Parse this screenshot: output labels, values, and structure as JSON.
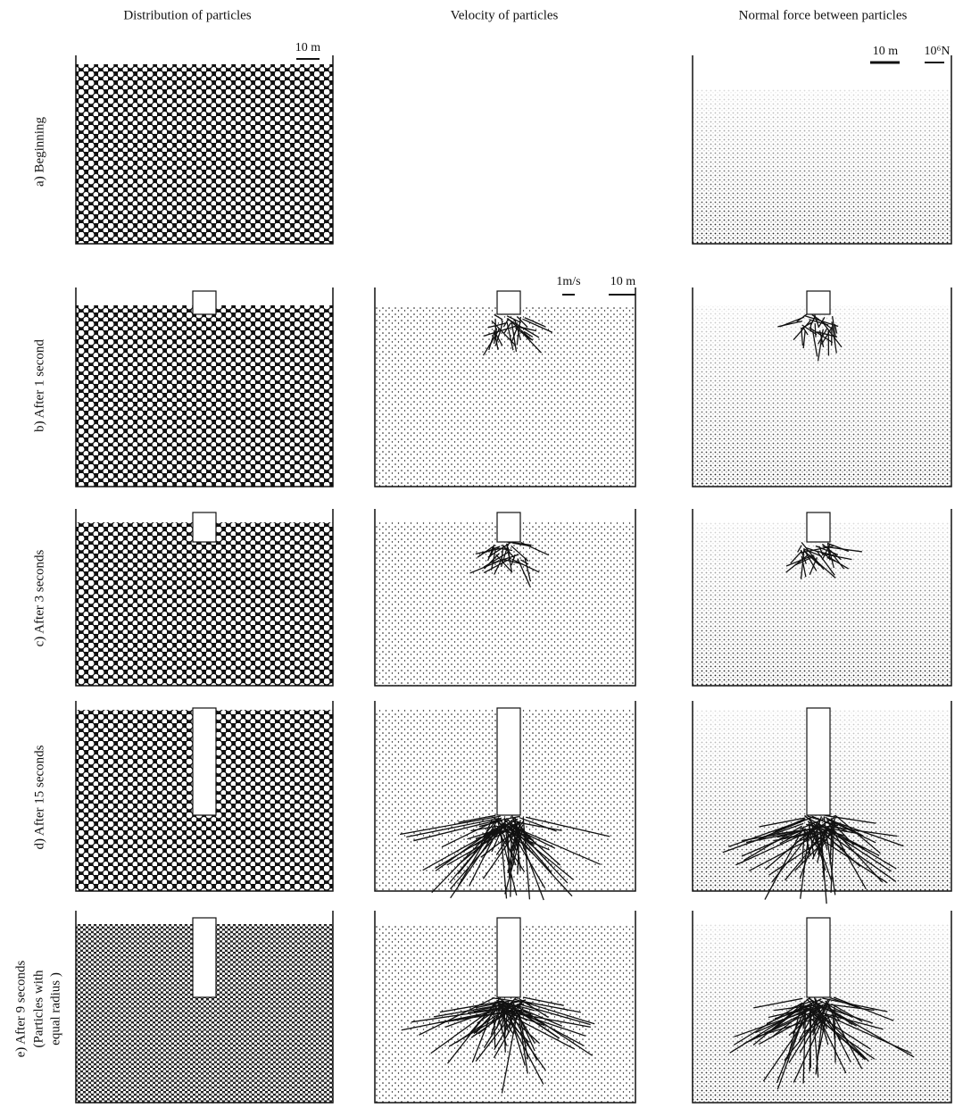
{
  "column_headers": [
    "Distribution of particles",
    "Velocity of particles",
    "Normal force between particles"
  ],
  "rows": [
    {
      "label": [
        "a) Beginning"
      ]
    },
    {
      "label": [
        "b) After 1 second"
      ]
    },
    {
      "label": [
        "c) After 3 seconds"
      ]
    },
    {
      "label": [
        "d) After 15 seconds"
      ]
    },
    {
      "label": [
        "e) After 9 seconds",
        "(Particles with",
        "equal radius )"
      ]
    }
  ],
  "scale_bars": {
    "distribution": [
      "10 m"
    ],
    "velocity": [
      "1m/s",
      "10 m"
    ],
    "force": [
      "10 m",
      "10⁶N"
    ]
  }
}
